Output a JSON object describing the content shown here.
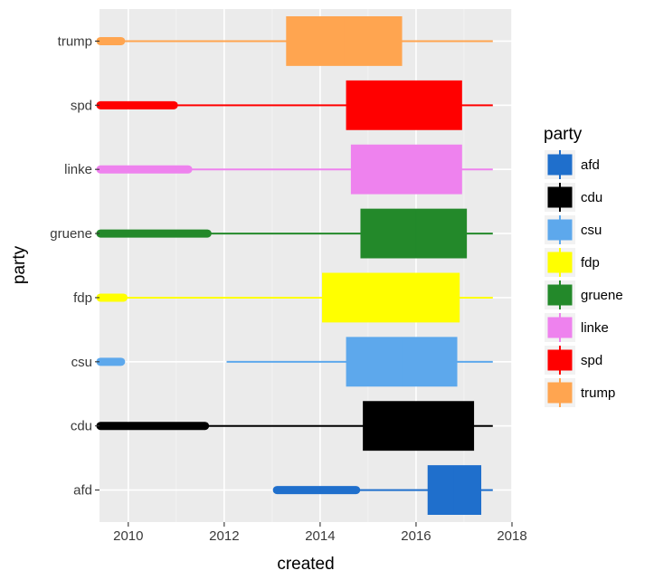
{
  "chart_data": {
    "type": "boxplot",
    "orientation": "horizontal",
    "title": "",
    "xlabel": "created",
    "ylabel": "party",
    "xlim": [
      2009.4,
      2018.0
    ],
    "x_ticks": [
      2010,
      2012,
      2014,
      2016,
      2018
    ],
    "x_tick_labels": [
      "2010",
      "2012",
      "2014",
      "2016",
      "2018"
    ],
    "grid": true,
    "legend": {
      "title": "party",
      "position": "right"
    },
    "categories": [
      "afd",
      "cdu",
      "csu",
      "fdp",
      "gruene",
      "linke",
      "spd",
      "trump"
    ],
    "series": [
      {
        "name": "afd",
        "color": "#1F6FCC",
        "whisker_low": 2013.1,
        "q1": 2016.25,
        "median": 2016.8,
        "q3": 2017.35,
        "whisker_high": 2017.6,
        "outliers_range": [
          2013.1,
          2014.75
        ]
      },
      {
        "name": "cdu",
        "color": "#000000",
        "whisker_low": 2009.4,
        "q1": 2014.9,
        "median": 2016.1,
        "q3": 2017.2,
        "whisker_high": 2017.6,
        "outliers_range": [
          2009.4,
          2011.6
        ]
      },
      {
        "name": "csu",
        "color": "#5DA8EC",
        "whisker_low": 2012.05,
        "q1": 2014.55,
        "median": 2015.7,
        "q3": 2016.85,
        "whisker_high": 2017.6,
        "outliers_range": [
          2009.4,
          2009.85
        ]
      },
      {
        "name": "fdp",
        "color": "#FFFF00",
        "whisker_low": 2009.4,
        "q1": 2014.05,
        "median": 2015.5,
        "q3": 2016.9,
        "whisker_high": 2017.6,
        "outliers_range": [
          2009.4,
          2009.9
        ]
      },
      {
        "name": "gruene",
        "color": "#23892A",
        "whisker_low": 2009.4,
        "q1": 2014.85,
        "median": 2016.0,
        "q3": 2017.05,
        "whisker_high": 2017.6,
        "outliers_range": [
          2009.4,
          2011.65
        ]
      },
      {
        "name": "linke",
        "color": "#EE82EE",
        "whisker_low": 2009.4,
        "q1": 2014.65,
        "median": 2015.85,
        "q3": 2016.95,
        "whisker_high": 2017.6,
        "outliers_range": [
          2009.4,
          2011.25
        ]
      },
      {
        "name": "spd",
        "color": "#FF0000",
        "whisker_low": 2009.4,
        "q1": 2014.55,
        "median": 2015.75,
        "q3": 2016.95,
        "whisker_high": 2017.6,
        "outliers_range": [
          2009.4,
          2010.95
        ]
      },
      {
        "name": "trump",
        "color": "#FFA550",
        "whisker_low": 2009.4,
        "q1": 2013.3,
        "median": 2014.5,
        "q3": 2015.7,
        "whisker_high": 2017.6,
        "outliers_range": [
          2009.4,
          2009.85
        ]
      }
    ]
  }
}
